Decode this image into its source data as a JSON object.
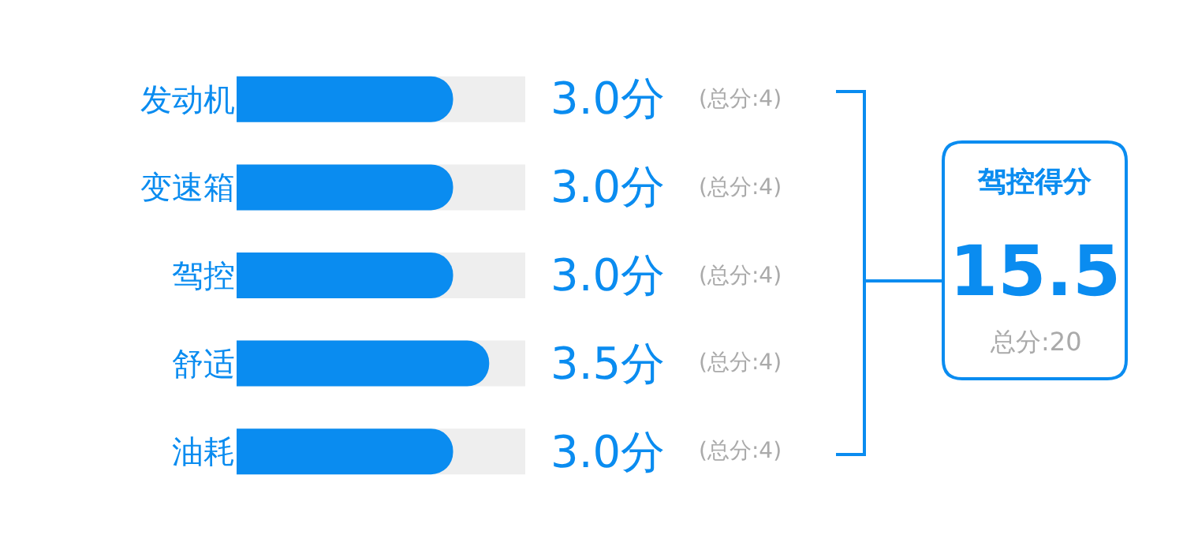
{
  "chart_data": {
    "type": "bar",
    "orientation": "horizontal",
    "categories": [
      "发动机",
      "变速箱",
      "驾控",
      "舒适",
      "油耗"
    ],
    "values": [
      3.0,
      3.0,
      3.0,
      3.5,
      3.0
    ],
    "value_labels": [
      "3.0分",
      "3.0分",
      "3.0分",
      "3.5分",
      "3.0分"
    ],
    "color": "#0a8cf0",
    "xlim": [
      0,
      4
    ],
    "grid": false,
    "legend": false,
    "annotations": [
      "(总分:4)",
      "(总分:4)",
      "(总分:4)",
      "(总分:4)",
      "(总分:4)",
      "驾控得分",
      "15.5",
      "总分:20"
    ]
  }
}
